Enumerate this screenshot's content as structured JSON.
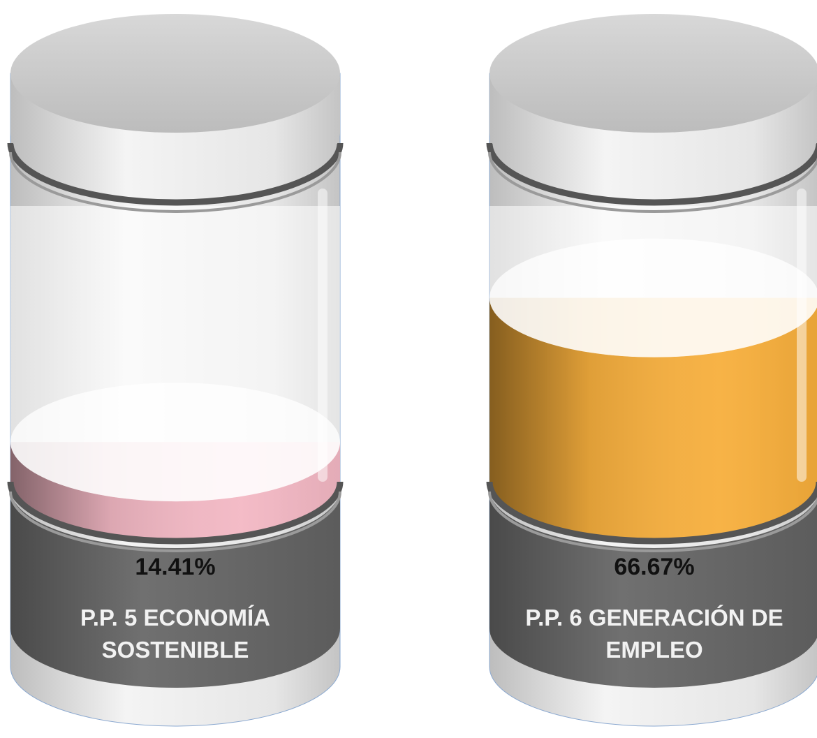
{
  "chart_data": {
    "type": "cylinder",
    "categories": [
      "P.P. 5 ECONOMÍA SOSTENIBLE",
      "P.P. 6 GENERACIÓN DE EMPLEO"
    ],
    "values": [
      14.41,
      66.67
    ],
    "value_labels": [
      "14.41%",
      "66.67%"
    ],
    "colors": [
      "#f4b3c0",
      "#f8a82a"
    ],
    "ylim": [
      0,
      100
    ]
  }
}
